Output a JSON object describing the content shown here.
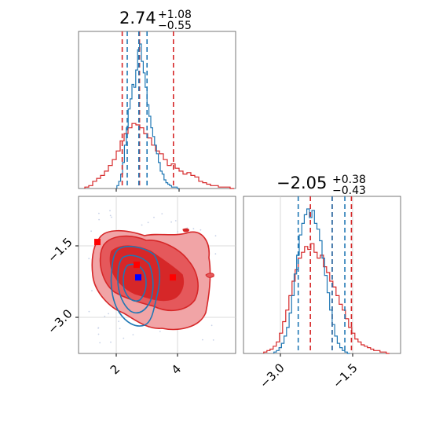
{
  "colors": {
    "red": "#d62728",
    "blue": "#1f77b4",
    "red_fill_1": "#f1a4a6",
    "red_fill_2": "#e5585b",
    "red_fill_3": "#d62728",
    "grid": "#cfcfcf",
    "marker_blue": "#0000ff",
    "marker_red": "#ff0000"
  },
  "chart_data": [
    {
      "type": "histogram",
      "panel": "p1-marginal",
      "title": {
        "median": "2.74",
        "plus": "+1.08",
        "minus": "−0.55"
      },
      "xlim": [
        0.8,
        5.8
      ],
      "red": {
        "quantile_lines": [
          2.19,
          2.74,
          3.82
        ],
        "bin_width": 0.125,
        "bin_start": 1.0,
        "density": [
          0.01,
          0.02,
          0.05,
          0.07,
          0.09,
          0.12,
          0.16,
          0.2,
          0.26,
          0.33,
          0.38,
          0.42,
          0.45,
          0.44,
          0.42,
          0.38,
          0.35,
          0.3,
          0.26,
          0.24,
          0.2,
          0.16,
          0.17,
          0.14,
          0.12,
          0.1,
          0.11,
          0.09,
          0.08,
          0.05,
          0.04,
          0.03,
          0.02,
          0.02,
          0.01,
          0.01,
          0.01,
          0.0
        ]
      },
      "blue": {
        "quantile_lines": [
          2.35,
          2.72,
          2.98
        ],
        "bin_width": 0.06,
        "bin_start": 2.02,
        "density": [
          0.02,
          0.05,
          0.1,
          0.18,
          0.3,
          0.42,
          0.55,
          0.62,
          0.72,
          0.7,
          0.82,
          0.96,
          1.0,
          0.88,
          0.8,
          0.7,
          0.58,
          0.5,
          0.42,
          0.36,
          0.3,
          0.24,
          0.18,
          0.12,
          0.1,
          0.06,
          0.04,
          0.03,
          0.02,
          0.01,
          0.01,
          0.01,
          0.0
        ]
      }
    },
    {
      "type": "histogram",
      "panel": "p2-marginal",
      "title": {
        "median": "−2.05",
        "plus": "+0.38",
        "minus": "−0.43"
      },
      "xlim": [
        -3.8,
        -0.7
      ],
      "xticks": [
        "−3.0",
        "−1.5"
      ],
      "xtick_values": [
        -3.0,
        -1.5
      ],
      "red": {
        "quantile_lines": [
          -2.48,
          -2.05,
          -1.67
        ],
        "bin_width": 0.062,
        "bin_start": -3.4,
        "density": [
          0.01,
          0.02,
          0.03,
          0.05,
          0.08,
          0.14,
          0.22,
          0.3,
          0.4,
          0.5,
          0.58,
          0.66,
          0.7,
          0.74,
          0.72,
          0.76,
          0.7,
          0.66,
          0.68,
          0.6,
          0.56,
          0.5,
          0.46,
          0.4,
          0.34,
          0.3,
          0.24,
          0.18,
          0.14,
          0.1,
          0.08,
          0.06,
          0.05,
          0.04,
          0.03,
          0.02,
          0.02,
          0.01,
          0.01,
          0.0
        ]
      },
      "blue": {
        "quantile_lines": [
          -2.72,
          -2.05,
          -1.8
        ],
        "bin_width": 0.05,
        "bin_start": -3.2,
        "density": [
          0.01,
          0.02,
          0.04,
          0.07,
          0.12,
          0.18,
          0.28,
          0.4,
          0.55,
          0.68,
          0.82,
          0.9,
          0.96,
          1.0,
          0.94,
          0.99,
          0.9,
          0.86,
          0.78,
          0.66,
          0.54,
          0.42,
          0.3,
          0.2,
          0.12,
          0.07,
          0.04,
          0.02,
          0.01,
          0.0
        ]
      }
    },
    {
      "type": "contour",
      "panel": "joint-p1-p2",
      "xlim": [
        0.8,
        5.8
      ],
      "ylim": [
        -3.8,
        -0.7
      ],
      "xticks": [
        "2",
        "4"
      ],
      "xtick_values": [
        2,
        4
      ],
      "yticks": [
        "−1.5",
        "−3.0"
      ],
      "ytick_values": [
        -1.5,
        -3.0
      ],
      "markers_red": [
        [
          1.4,
          -1.6
        ],
        [
          2.65,
          -2.05
        ],
        [
          3.8,
          -2.3
        ]
      ],
      "markers_blue": [
        [
          2.7,
          -2.3
        ]
      ]
    }
  ]
}
